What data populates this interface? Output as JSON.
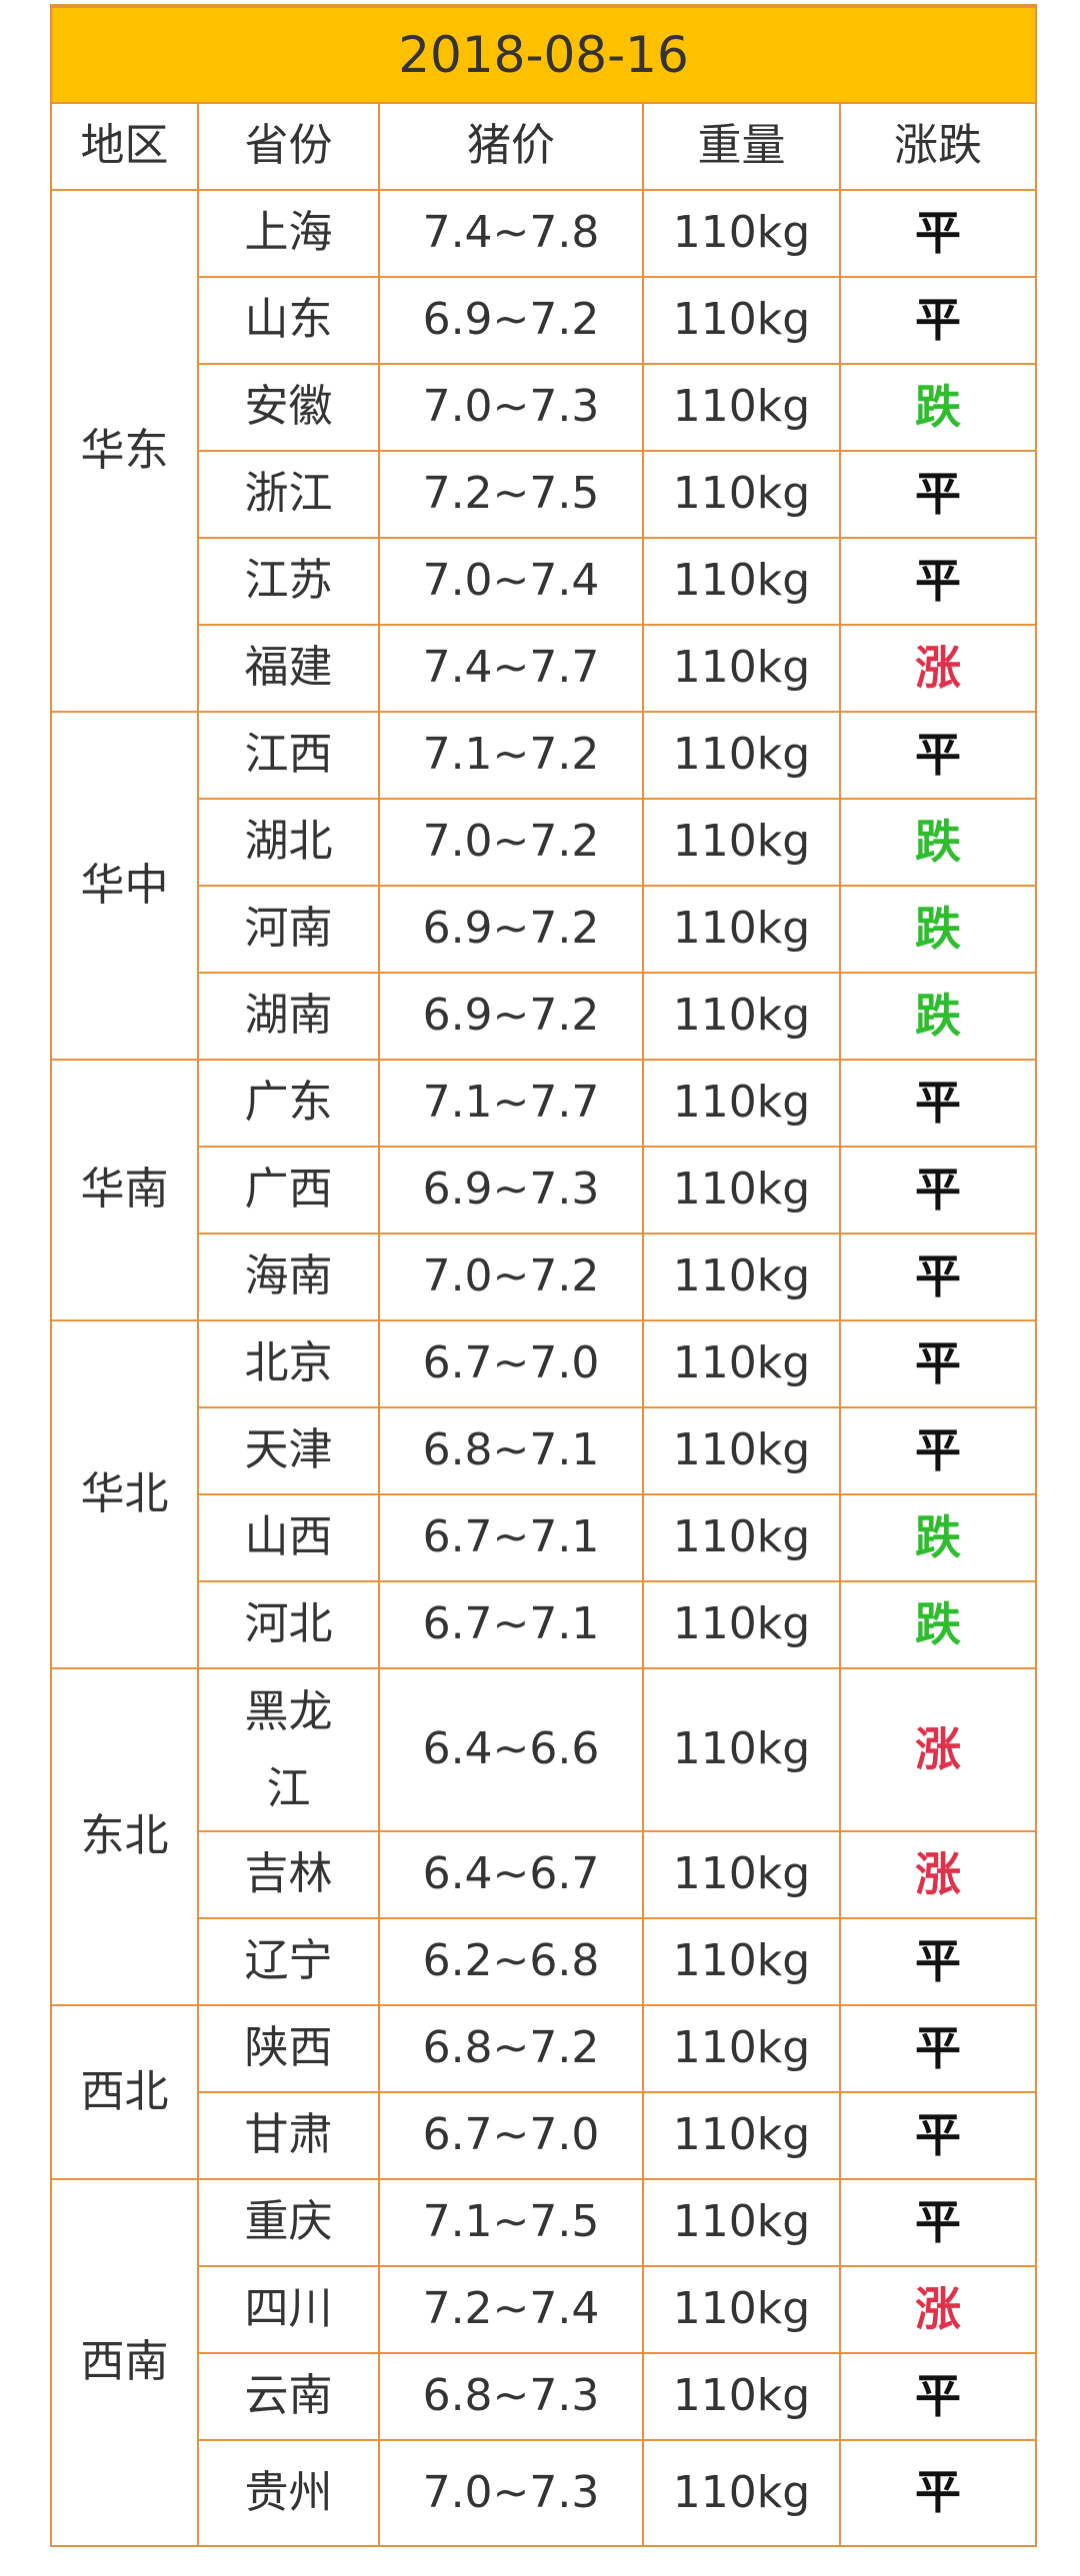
{
  "title": "2018-08-16",
  "header": [
    "地区",
    "省份",
    "猪价",
    "重量",
    "涨跌"
  ],
  "regions": [
    {
      "name": "华东",
      "rows": [
        {
          "province": "上海",
          "price": "7.4~7.8",
          "weight": "110kg",
          "trend": "平",
          "color": "#111111"
        },
        {
          "province": "山东",
          "price": "6.9~7.2",
          "weight": "110kg",
          "trend": "平",
          "color": "#111111"
        },
        {
          "province": "安徽",
          "price": "7.0~7.3",
          "weight": "110kg",
          "trend": "跌",
          "color": "#2dbd2d"
        },
        {
          "province": "浙江",
          "price": "7.2~7.5",
          "weight": "110kg",
          "trend": "平",
          "color": "#111111"
        },
        {
          "province": "江苏",
          "price": "7.0~7.4",
          "weight": "110kg",
          "trend": "平",
          "color": "#111111"
        },
        {
          "province": "福建",
          "price": "7.4~7.7",
          "weight": "110kg",
          "trend": "涨",
          "color": "#e0314b"
        }
      ]
    },
    {
      "name": "华中",
      "rows": [
        {
          "province": "江西",
          "price": "7.1~7.2",
          "weight": "110kg",
          "trend": "平",
          "color": "#111111"
        },
        {
          "province": "湖北",
          "price": "7.0~7.2",
          "weight": "110kg",
          "trend": "跌",
          "color": "#2dbd2d"
        },
        {
          "province": "河南",
          "price": "6.9~7.2",
          "weight": "110kg",
          "trend": "跌",
          "color": "#2dbd2d"
        },
        {
          "province": "湖南",
          "price": "6.9~7.2",
          "weight": "110kg",
          "trend": "跌",
          "color": "#2dbd2d"
        }
      ]
    },
    {
      "name": "华南",
      "rows": [
        {
          "province": "广东",
          "price": "7.1~7.7",
          "weight": "110kg",
          "trend": "平",
          "color": "#111111"
        },
        {
          "province": "广西",
          "price": "6.9~7.3",
          "weight": "110kg",
          "trend": "平",
          "color": "#111111"
        },
        {
          "province": "海南",
          "price": "7.0~7.2",
          "weight": "110kg",
          "trend": "平",
          "color": "#111111"
        }
      ]
    },
    {
      "name": "华北",
      "rows": [
        {
          "province": "北京",
          "price": "6.7~7.0",
          "weight": "110kg",
          "trend": "平",
          "color": "#111111"
        },
        {
          "province": "天津",
          "price": "6.8~7.1",
          "weight": "110kg",
          "trend": "平",
          "color": "#111111"
        },
        {
          "province": "山西",
          "price": "6.7~7.1",
          "weight": "110kg",
          "trend": "跌",
          "color": "#2dbd2d"
        },
        {
          "province": "河北",
          "price": "6.7~7.1",
          "weight": "110kg",
          "trend": "跌",
          "color": "#2dbd2d"
        }
      ]
    },
    {
      "name": "东北",
      "rows": [
        {
          "province": "黑龙江",
          "price": "6.4~6.6",
          "weight": "110kg",
          "trend": "涨",
          "color": "#e0314b"
        },
        {
          "province": "吉林",
          "price": "6.4~6.7",
          "weight": "110kg",
          "trend": "涨",
          "color": "#e0314b"
        },
        {
          "province": "辽宁",
          "price": "6.2~6.8",
          "weight": "110kg",
          "trend": "平",
          "color": "#111111"
        }
      ]
    },
    {
      "name": "西北",
      "rows": [
        {
          "province": "陕西",
          "price": "6.8~7.2",
          "weight": "110kg",
          "trend": "平",
          "color": "#111111"
        },
        {
          "province": "甘肃",
          "price": "6.7~7.0",
          "weight": "110kg",
          "trend": "平",
          "color": "#111111"
        }
      ]
    },
    {
      "name": "西南",
      "rows": [
        {
          "province": "重庆",
          "price": "7.1~7.5",
          "weight": "110kg",
          "trend": "平",
          "color": "#111111"
        },
        {
          "province": "四川",
          "price": "7.2~7.4",
          "weight": "110kg",
          "trend": "涨",
          "color": "#e0314b"
        },
        {
          "province": "云南",
          "price": "6.8~7.3",
          "weight": "110kg",
          "trend": "平",
          "color": "#111111"
        },
        {
          "province": "贵州",
          "price": "7.0~7.3",
          "weight": "110kg",
          "trend": "平",
          "color": "#111111"
        }
      ]
    }
  ]
}
